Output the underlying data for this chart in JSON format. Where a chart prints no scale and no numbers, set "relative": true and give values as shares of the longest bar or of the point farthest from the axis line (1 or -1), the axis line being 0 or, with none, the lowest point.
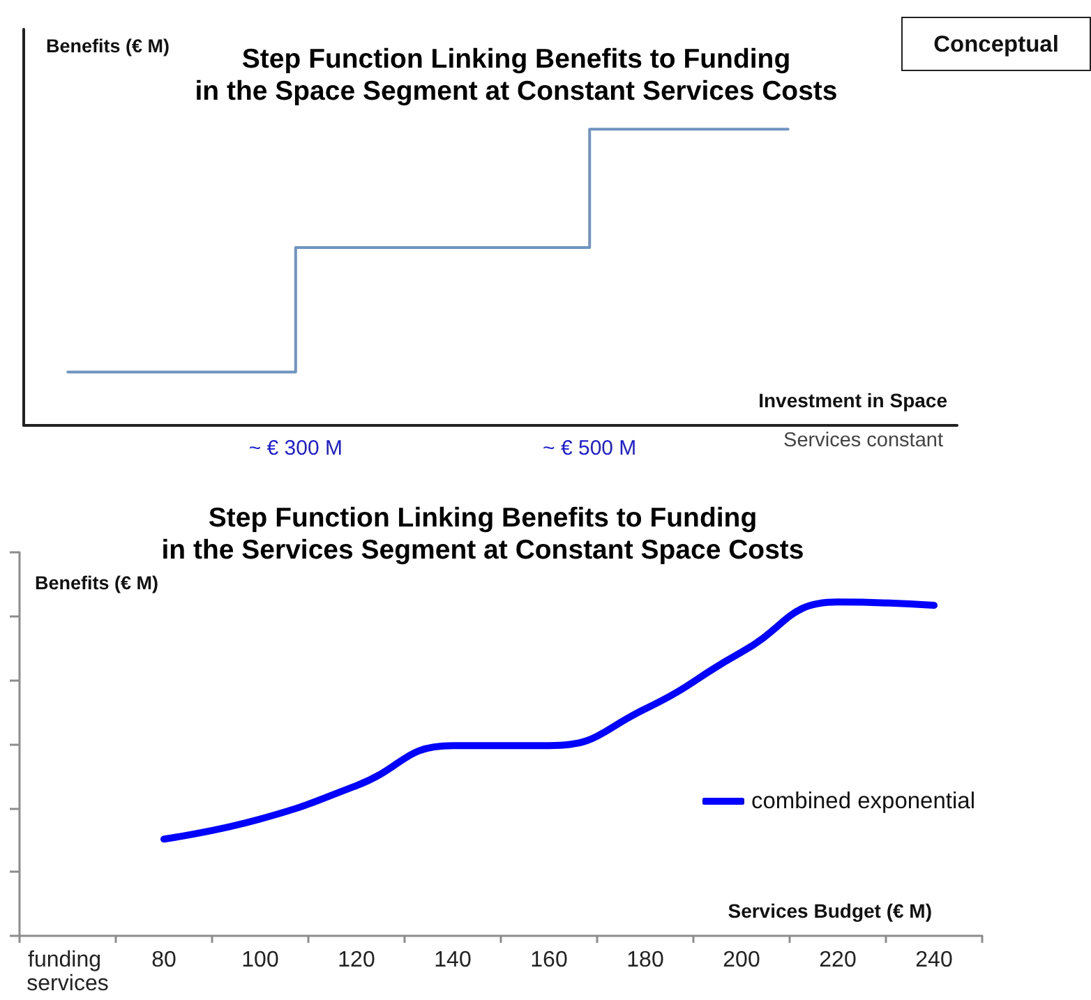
{
  "chart_data": [
    {
      "type": "step",
      "title": "Step Function Linking Benefits to Funding\nin the Space Segment at Constant Services Costs",
      "xlabel": "Investment in Space",
      "ylabel": "Benefits (€ M)",
      "annotations": [
        "Conceptual",
        "Services constant"
      ],
      "relative": true,
      "x": [
        145,
        300,
        500,
        635
      ],
      "values": [
        0.18,
        0.6,
        1,
        1
      ],
      "color": "#7094c0",
      "xlim": [
        115,
        750
      ],
      "xticks": [
        {
          "value": 300,
          "label": "~ € 300 M"
        },
        {
          "value": 500,
          "label": "~ € 500 M"
        }
      ],
      "tick_labels": "x",
      "marker": "none"
    },
    {
      "type": "line",
      "title": "Step Function Linking Benefits to Funding\nin the Services Segment at Constant Space Costs",
      "xlabel": "Services Budget (€ M)",
      "ylabel": "Benefits (€ M)",
      "relative": true,
      "categories": [
        "funding services",
        "80",
        "100",
        "120",
        "140",
        "160",
        "180",
        "200",
        "220",
        "240"
      ],
      "series": [
        {
          "name": "combined exponential",
          "color": "#0000ff",
          "values": [
            null,
            0.29,
            0.35,
            0.45,
            0.57,
            0.57,
            0.68,
            0.85,
            1,
            0.99
          ]
        }
      ],
      "legend": "right",
      "tick_labels": "x",
      "marker": "none"
    }
  ]
}
